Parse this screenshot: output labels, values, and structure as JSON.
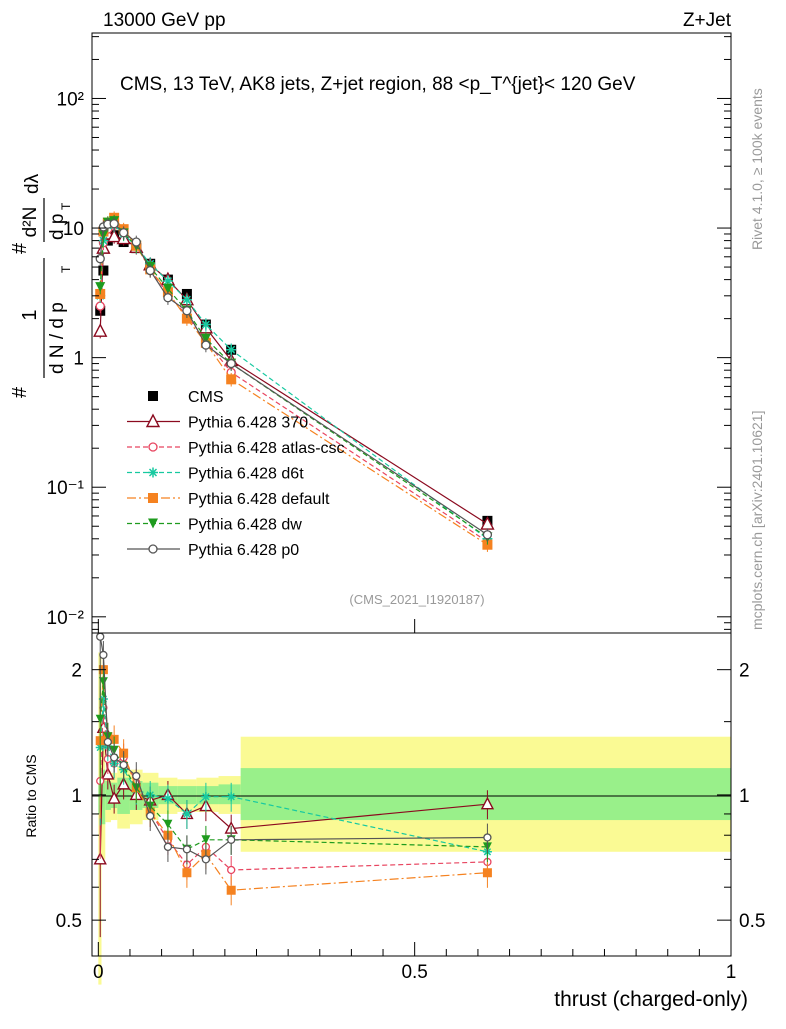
{
  "header": {
    "left": "13000 GeV pp",
    "right": "Z+Jet"
  },
  "side_texts": {
    "rivet": "Rivet 4.1.0, ≥ 100k events",
    "mcplots": "mcplots.cern.ch [arXiv:2401.10621]"
  },
  "colors": {
    "CMS": "#000000",
    "370": "#8b0a1f",
    "atlas": "#e8445f",
    "d6t": "#17c9a0",
    "default": "#f58220",
    "dw": "#1e9b1e",
    "p0": "#555555",
    "band_inner": "#99f08a",
    "band_outer": "#fafa94"
  },
  "chart_data": [
    {
      "type": "scatter",
      "title": "CMS, 13 TeV, AK8 jets, Z+jet region, 88 <p_T^{jet}< 120 GeV",
      "ylabel": "1/N dN/dp_T d²N/dp_T dλ",
      "ylabel_parts": {
        "frac1_num": "1",
        "frac1_den": "d N / d p",
        "frac2_num": "d²N",
        "frac2_den": "d p",
        "frac2_tail": "dλ",
        "sub_t": "T",
        "hash": "#"
      },
      "yscale": "log",
      "ylim": [
        0.0075,
        320
      ],
      "xlim": [
        -0.01,
        1.0
      ],
      "yticks": [
        {
          "v": 100,
          "label": "10²"
        },
        {
          "v": 10,
          "label": "10"
        },
        {
          "v": 1,
          "label": "1"
        },
        {
          "v": 0.1,
          "label": "10⁻¹"
        },
        {
          "v": 0.01,
          "label": "10⁻²"
        }
      ],
      "watermark": "(CMS_2021_I1920187)",
      "legend_position": "lower-left",
      "x": [
        0.003,
        0.008,
        0.015,
        0.025,
        0.04,
        0.06,
        0.082,
        0.11,
        0.14,
        0.17,
        0.21,
        0.615
      ],
      "series": [
        {
          "key": "CMS",
          "name": "CMS",
          "style": "cms",
          "values": [
            2.3,
            4.7,
            8.0,
            8.8,
            7.8,
            7.0,
            5.3,
            4.0,
            3.1,
            1.8,
            1.15,
            0.055
          ]
        },
        {
          "key": "370",
          "name": "Pythia 6.428 370",
          "style": "triangle",
          "values": [
            1.6,
            7.0,
            9.0,
            8.6,
            8.3,
            7.1,
            5.2,
            4.0,
            2.8,
            1.7,
            0.95,
            0.052
          ]
        },
        {
          "key": "atlas",
          "name": "Pythia 6.428 atlas-csc",
          "style": "open-circle-dashed",
          "values": [
            2.5,
            7.7,
            9.8,
            10.5,
            9.6,
            7.5,
            4.8,
            3.1,
            2.1,
            1.35,
            0.77,
            0.038
          ]
        },
        {
          "key": "d6t",
          "name": "Pythia 6.428 d6t",
          "style": "star-dashed",
          "values": [
            3.0,
            8.0,
            10.5,
            10.5,
            9.0,
            7.2,
            5.3,
            3.9,
            2.8,
            1.8,
            1.15,
            0.04
          ]
        },
        {
          "key": "default",
          "name": "Pythia 6.428 default",
          "style": "square-dashdot",
          "values": [
            3.1,
            9.4,
            11.0,
            12.0,
            9.8,
            7.3,
            4.8,
            3.2,
            2.0,
            1.3,
            0.68,
            0.036
          ]
        },
        {
          "key": "dw",
          "name": "Pythia 6.428 dw",
          "style": "triangle-down-dashed",
          "values": [
            3.5,
            8.8,
            11.0,
            11.3,
            9.1,
            7.3,
            5.0,
            3.4,
            2.3,
            1.4,
            0.9,
            0.041
          ]
        },
        {
          "key": "p0",
          "name": "Pythia 6.428 p0",
          "style": "open-circle-solid",
          "values": [
            5.8,
            10.2,
            10.7,
            10.8,
            9.2,
            7.8,
            4.7,
            2.9,
            2.3,
            1.25,
            0.9,
            0.043
          ]
        }
      ]
    },
    {
      "type": "scatter",
      "ylabel": "Ratio to CMS",
      "xlabel": "thrust (charged-only)",
      "yscale": "log",
      "ylim": [
        0.41,
        2.45
      ],
      "xlim": [
        -0.01,
        1.0
      ],
      "yticks": [
        {
          "v": 2,
          "label": "2"
        },
        {
          "v": 1,
          "label": "1"
        },
        {
          "v": 0.5,
          "label": "0.5"
        }
      ],
      "xticks": [
        {
          "v": 0,
          "label": "0"
        },
        {
          "v": 0.5,
          "label": "0.5"
        },
        {
          "v": 1,
          "label": "1"
        }
      ],
      "bands": [
        {
          "x0": 0.0,
          "x1": 0.005,
          "inner": [
            0.9,
            1.1
          ],
          "outer": [
            0.35,
            2.2
          ]
        },
        {
          "x0": 0.005,
          "x1": 0.011,
          "inner": [
            0.85,
            1.15
          ],
          "outer": [
            0.7,
            1.3
          ]
        },
        {
          "x0": 0.011,
          "x1": 0.02,
          "inner": [
            0.92,
            1.08
          ],
          "outer": [
            0.86,
            1.14
          ]
        },
        {
          "x0": 0.02,
          "x1": 0.03,
          "inner": [
            0.93,
            1.07
          ],
          "outer": [
            0.87,
            1.13
          ]
        },
        {
          "x0": 0.03,
          "x1": 0.05,
          "inner": [
            0.9,
            1.1
          ],
          "outer": [
            0.83,
            1.17
          ]
        },
        {
          "x0": 0.05,
          "x1": 0.07,
          "inner": [
            0.92,
            1.08
          ],
          "outer": [
            0.85,
            1.15
          ]
        },
        {
          "x0": 0.07,
          "x1": 0.095,
          "inner": [
            0.93,
            1.07
          ],
          "outer": [
            0.87,
            1.13
          ]
        },
        {
          "x0": 0.095,
          "x1": 0.125,
          "inner": [
            0.95,
            1.05
          ],
          "outer": [
            0.9,
            1.1
          ]
        },
        {
          "x0": 0.125,
          "x1": 0.155,
          "inner": [
            0.95,
            1.05
          ],
          "outer": [
            0.91,
            1.09
          ]
        },
        {
          "x0": 0.155,
          "x1": 0.19,
          "inner": [
            0.95,
            1.05
          ],
          "outer": [
            0.91,
            1.1
          ]
        },
        {
          "x0": 0.19,
          "x1": 0.225,
          "inner": [
            0.95,
            1.06
          ],
          "outer": [
            0.9,
            1.11
          ]
        },
        {
          "x0": 0.225,
          "x1": 1.0,
          "inner": [
            0.87,
            1.16
          ],
          "outer": [
            0.73,
            1.38
          ]
        }
      ],
      "x": [
        0.003,
        0.008,
        0.015,
        0.025,
        0.04,
        0.06,
        0.082,
        0.11,
        0.14,
        0.17,
        0.21,
        0.615
      ],
      "series": [
        {
          "key": "370",
          "name": "Pythia 6.428 370",
          "values": [
            0.7,
            1.45,
            1.12,
            0.98,
            1.06,
            1.0,
            0.97,
            1.0,
            0.9,
            0.94,
            0.83,
            0.95
          ]
        },
        {
          "key": "atlas",
          "name": "Pythia 6.428 atlas-csc",
          "values": [
            1.08,
            1.62,
            1.22,
            1.19,
            1.23,
            1.07,
            0.91,
            0.78,
            0.68,
            0.75,
            0.66,
            0.69
          ]
        },
        {
          "key": "d6t",
          "name": "Pythia 6.428 d6t",
          "values": [
            1.3,
            1.7,
            1.31,
            1.19,
            1.15,
            1.03,
            1.0,
            0.98,
            0.9,
            0.99,
            0.99,
            0.73
          ]
        },
        {
          "key": "default",
          "name": "Pythia 6.428 default",
          "values": [
            1.35,
            2.0,
            1.38,
            1.36,
            1.26,
            1.04,
            0.91,
            0.8,
            0.65,
            0.72,
            0.59,
            0.65
          ]
        },
        {
          "key": "dw",
          "name": "Pythia 6.428 dw",
          "values": [
            1.52,
            1.87,
            1.38,
            1.28,
            1.17,
            1.04,
            0.94,
            0.85,
            0.74,
            0.78,
            0.78,
            0.75
          ]
        },
        {
          "key": "p0",
          "name": "Pythia 6.428 p0",
          "values": [
            2.52,
            2.17,
            1.34,
            1.23,
            1.18,
            1.11,
            0.89,
            0.75,
            0.74,
            0.7,
            0.78,
            0.79
          ]
        }
      ]
    }
  ]
}
